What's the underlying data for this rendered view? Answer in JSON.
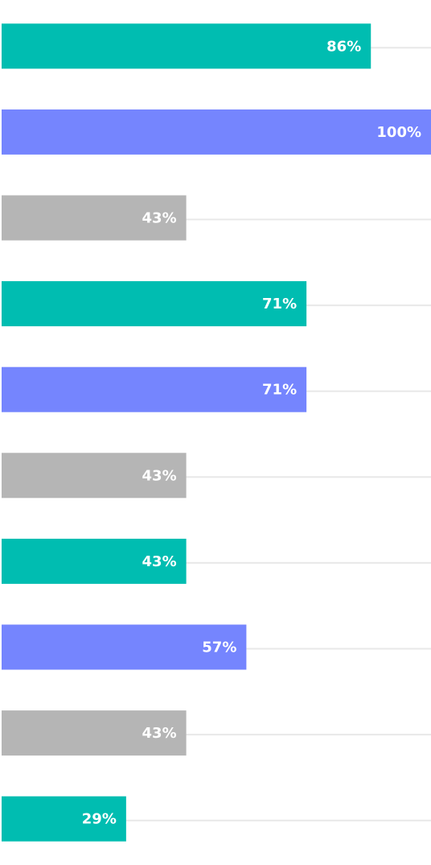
{
  "chart_data": {
    "type": "bar",
    "orientation": "horizontal",
    "values": [
      86,
      100,
      43,
      71,
      71,
      43,
      43,
      57,
      43,
      29
    ],
    "value_labels": [
      "86%",
      "100%",
      "43%",
      "71%",
      "71%",
      "43%",
      "43%",
      "57%",
      "43%",
      "29%"
    ],
    "colors": [
      "#00bdb1",
      "#7585fe",
      "#b5b5b5",
      "#00bdb1",
      "#7585fe",
      "#b5b5b5",
      "#00bdb1",
      "#7585fe",
      "#b5b5b5",
      "#00bdb1"
    ],
    "xlim": [
      0,
      100
    ]
  }
}
